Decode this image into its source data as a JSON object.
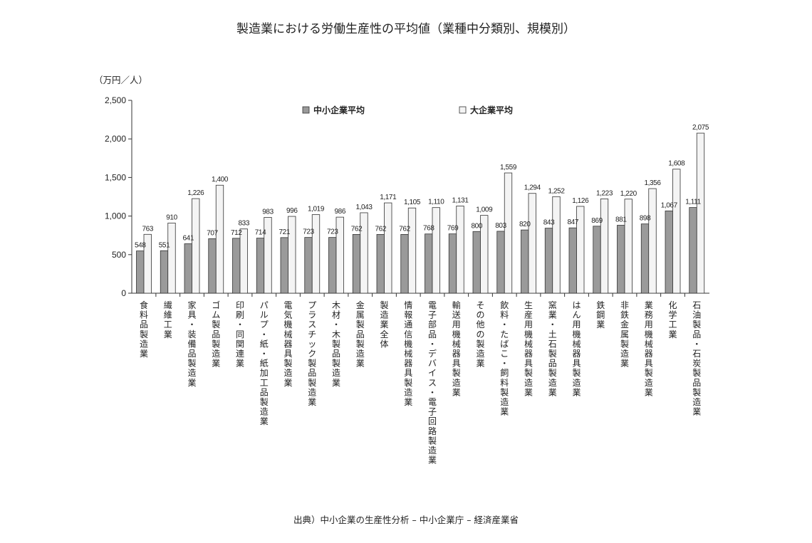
{
  "chart_data": {
    "type": "bar",
    "title": "製造業における労働生産性の平均値（業種中分類別、規模別）",
    "ylabel": "（万円／人）",
    "ylim": [
      0,
      2500
    ],
    "yticks": [
      "0",
      "500",
      "1,000",
      "1,500",
      "2,000",
      "2,500"
    ],
    "ytick_values": [
      0,
      500,
      1000,
      1500,
      2000,
      2500
    ],
    "grid": false,
    "legend_position": "top-center",
    "categories": [
      "食料品製造業",
      "繊維工業",
      "家具・装備品製造業",
      "ゴム製品製造業",
      "印刷・同関連業",
      "パルプ・紙・紙加工品製造業",
      "電気機械器具製造業",
      "プラスチック製品製造業",
      "木材・木製品製造業",
      "金属製品製造業",
      "製造業全体",
      "情報通信機械器具製造業",
      "電子部品・デバイス・電子回路製造業",
      "輸送用機械器具製造業",
      "その他の製造業",
      "飲料・たばこ・飼料製造業",
      "生産用機械器具製造業",
      "窯業・土石製品製造業",
      "はん用機械器具製造業",
      "鉄鋼業",
      "非鉄金属製造業",
      "業務用機械器具製造業",
      "化学工業",
      "石油製品・石炭製品製造業"
    ],
    "series": [
      {
        "name": "中小企業平均",
        "color": "#9a9a9a",
        "values": [
          548,
          551,
          641,
          707,
          712,
          714,
          721,
          723,
          723,
          762,
          762,
          762,
          768,
          769,
          800,
          803,
          820,
          843,
          847,
          869,
          881,
          898,
          1067,
          1111
        ],
        "labels": [
          "548",
          "551",
          "641",
          "707",
          "712",
          "714",
          "721",
          "723",
          "723",
          "762",
          "762",
          "762",
          "768",
          "769",
          "800",
          "803",
          "820",
          "843",
          "847",
          "869",
          "881",
          "898",
          "1,067",
          "1,111"
        ]
      },
      {
        "name": "大企業平均",
        "color": "#f4f4f4",
        "values": [
          763,
          910,
          1226,
          1400,
          833,
          983,
          996,
          1019,
          986,
          1043,
          1171,
          1105,
          1110,
          1131,
          1009,
          1559,
          1294,
          1252,
          1126,
          1223,
          1220,
          1356,
          1608,
          2075
        ],
        "labels": [
          "763",
          "910",
          "1,226",
          "1,400",
          "833",
          "983",
          "996",
          "1,019",
          "986",
          "1,043",
          "1,171",
          "1,105",
          "1,110",
          "1,131",
          "1,009",
          "1,559",
          "1,294",
          "1,252",
          "1,126",
          "1,223",
          "1,220",
          "1,356",
          "1,608",
          "2,075"
        ]
      }
    ]
  },
  "source": "出典）中小企業の生産性分析 – 中小企業庁 – 経済産業省"
}
